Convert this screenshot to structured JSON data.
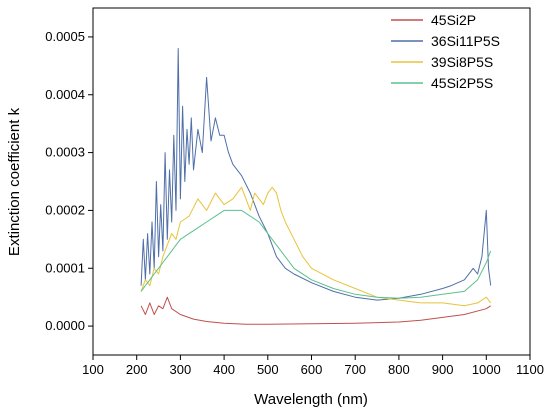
{
  "chart_data": {
    "type": "line",
    "xlabel": "Wavelength (nm)",
    "ylabel": "Extinction coefficient k",
    "xlim": [
      100,
      1100
    ],
    "ylim": [
      -5e-05,
      0.00055
    ],
    "x_ticks": [
      "100",
      "200",
      "300",
      "400",
      "500",
      "600",
      "700",
      "800",
      "900",
      "1000",
      "1100"
    ],
    "y_ticks": [
      "0.0000",
      "0.0001",
      "0.0002",
      "0.0003",
      "0.0004",
      "0.0005"
    ],
    "legend_position": "top-right",
    "series": [
      {
        "name": "45Si2P",
        "color": "#c0504d",
        "x": [
          210,
          220,
          230,
          240,
          250,
          260,
          270,
          280,
          300,
          330,
          360,
          400,
          450,
          500,
          600,
          700,
          800,
          850,
          900,
          950,
          1000,
          1010
        ],
        "y": [
          3.5e-05,
          2e-05,
          4e-05,
          2e-05,
          3.5e-05,
          3e-05,
          5e-05,
          3e-05,
          2e-05,
          1.2e-05,
          8e-06,
          5e-06,
          3e-06,
          3e-06,
          4e-06,
          5e-06,
          7e-06,
          1e-05,
          1.5e-05,
          2e-05,
          3e-05,
          3.5e-05
        ]
      },
      {
        "name": "36Si11P5S",
        "color": "#4f6fa8",
        "x": [
          210,
          215,
          220,
          225,
          230,
          235,
          240,
          245,
          250,
          255,
          260,
          265,
          270,
          275,
          280,
          285,
          290,
          295,
          300,
          305,
          310,
          315,
          320,
          325,
          330,
          340,
          350,
          360,
          370,
          380,
          390,
          400,
          410,
          420,
          430,
          440,
          460,
          480,
          500,
          520,
          540,
          560,
          600,
          650,
          700,
          750,
          800,
          850,
          900,
          920,
          950,
          970,
          980,
          990,
          1000,
          1005,
          1010
        ],
        "y": [
          7e-05,
          0.00015,
          8e-05,
          0.00016,
          9e-05,
          0.00018,
          0.0001,
          0.00025,
          0.00012,
          0.00021,
          0.00013,
          0.0003,
          0.00015,
          0.00027,
          0.00018,
          0.00033,
          0.0002,
          0.00048,
          0.00022,
          0.00038,
          0.00025,
          0.00034,
          0.00028,
          0.00036,
          0.00027,
          0.00034,
          0.0003,
          0.00043,
          0.00032,
          0.00036,
          0.00033,
          0.00033,
          0.0003,
          0.00028,
          0.00027,
          0.00026,
          0.00023,
          0.00019,
          0.00016,
          0.00012,
          0.0001,
          9e-05,
          7.5e-05,
          6e-05,
          5e-05,
          4.5e-05,
          4.8e-05,
          5.5e-05,
          6.5e-05,
          7e-05,
          8e-05,
          0.0001,
          9e-05,
          0.00012,
          0.0002,
          0.0001,
          7e-05
        ]
      },
      {
        "name": "39Si8P5S",
        "color": "#e8c33a",
        "x": [
          210,
          220,
          230,
          240,
          250,
          260,
          270,
          280,
          290,
          300,
          320,
          340,
          360,
          380,
          400,
          420,
          440,
          460,
          470,
          480,
          490,
          500,
          510,
          520,
          530,
          540,
          560,
          580,
          600,
          650,
          700,
          750,
          800,
          850,
          900,
          950,
          980,
          1000,
          1010
        ],
        "y": [
          6e-05,
          8e-05,
          7e-05,
          0.0001,
          9e-05,
          0.00012,
          0.00014,
          0.00016,
          0.00015,
          0.00018,
          0.00019,
          0.00022,
          0.0002,
          0.00023,
          0.00021,
          0.00022,
          0.00024,
          0.0002,
          0.00023,
          0.00022,
          0.00021,
          0.00023,
          0.00024,
          0.00023,
          0.0002,
          0.00018,
          0.00015,
          0.00012,
          0.0001,
          8e-05,
          6.5e-05,
          5e-05,
          4.5e-05,
          4e-05,
          4e-05,
          3.5e-05,
          4e-05,
          5e-05,
          4e-05
        ]
      },
      {
        "name": "45Si2P5S",
        "color": "#5cc08e",
        "x": [
          210,
          220,
          230,
          240,
          250,
          260,
          270,
          280,
          290,
          300,
          320,
          340,
          360,
          380,
          400,
          420,
          440,
          460,
          480,
          500,
          520,
          540,
          560,
          600,
          650,
          700,
          750,
          800,
          850,
          900,
          950,
          980,
          1000,
          1010
        ],
        "y": [
          6e-05,
          7e-05,
          8e-05,
          9e-05,
          0.0001,
          0.00011,
          0.00012,
          0.00013,
          0.00014,
          0.00015,
          0.00016,
          0.00017,
          0.00018,
          0.00019,
          0.0002,
          0.0002,
          0.0002,
          0.00019,
          0.00018,
          0.00016,
          0.00014,
          0.00012,
          0.0001,
          8e-05,
          6.5e-05,
          5.5e-05,
          5e-05,
          4.8e-05,
          5e-05,
          5.5e-05,
          6e-05,
          8e-05,
          0.00011,
          0.00013
        ]
      }
    ]
  }
}
